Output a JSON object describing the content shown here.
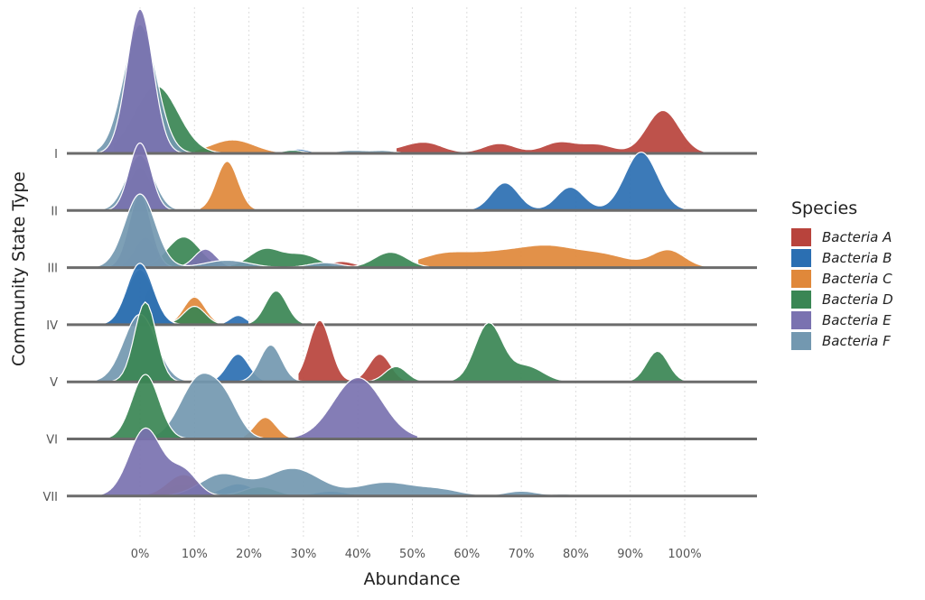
{
  "chart_data": {
    "type": "ridgeline",
    "xlabel": "Abundance",
    "ylabel": "Community State Type",
    "xlim": [
      -14,
      114
    ],
    "x_ticks": [
      "0%",
      "10%",
      "20%",
      "30%",
      "40%",
      "50%",
      "60%",
      "70%",
      "80%",
      "90%",
      "100%"
    ],
    "x_tick_values": [
      0,
      10,
      20,
      30,
      40,
      50,
      60,
      70,
      80,
      90,
      100
    ],
    "grid": "vertical dotted",
    "legend": {
      "title": "Species",
      "position": "right"
    },
    "categories": [
      "I",
      "II",
      "III",
      "IV",
      "V",
      "VI",
      "VII"
    ],
    "species": [
      {
        "name": "Bacteria A",
        "color": "#b8433c"
      },
      {
        "name": "Bacteria B",
        "color": "#2b6fb2"
      },
      {
        "name": "Bacteria C",
        "color": "#e0883a"
      },
      {
        "name": "Bacteria D",
        "color": "#3a8654"
      },
      {
        "name": "Bacteria E",
        "color": "#7a72b0"
      },
      {
        "name": "Bacteria F",
        "color": "#7398b0"
      }
    ],
    "series": [
      {
        "type": "I",
        "species": "Bacteria A",
        "range": [
          47,
          105
        ],
        "peaks": [
          [
            50,
            4,
            0.1
          ],
          [
            53,
            3,
            0.1
          ],
          [
            66,
            3,
            0.16
          ],
          [
            77,
            3,
            0.18
          ],
          [
            84,
            3,
            0.14
          ],
          [
            96,
            3,
            0.7
          ]
        ]
      },
      {
        "type": "I",
        "species": "Bacteria B",
        "range": [
          26,
          33
        ],
        "peaks": [
          [
            29,
            2,
            0.07
          ]
        ]
      },
      {
        "type": "I",
        "species": "Bacteria C",
        "range": [
          10,
          29
        ],
        "peaks": [
          [
            17,
            4,
            0.22
          ]
        ]
      },
      {
        "type": "I",
        "species": "Bacteria D",
        "range": [
          -5,
          33
        ],
        "peaks": [
          [
            3,
            4,
            1.1
          ],
          [
            28,
            2,
            0.05
          ]
        ]
      },
      {
        "type": "I",
        "species": "Bacteria E",
        "range": [
          -8,
          8
        ],
        "peaks": [
          [
            0,
            2.4,
            2.35
          ]
        ]
      },
      {
        "type": "I",
        "species": "Bacteria F",
        "range": [
          -8,
          48
        ],
        "peaks": [
          [
            0,
            3,
            2.1
          ],
          [
            39,
            3,
            0.05
          ],
          [
            45,
            2,
            0.04
          ]
        ]
      },
      {
        "type": "II",
        "species": "Bacteria B",
        "range": [
          61,
          100
        ],
        "peaks": [
          [
            67,
            2.5,
            0.45
          ],
          [
            79,
            2.5,
            0.38
          ],
          [
            92,
            3,
            0.95
          ]
        ]
      },
      {
        "type": "II",
        "species": "Bacteria C",
        "range": [
          11,
          23
        ],
        "peaks": [
          [
            16,
            2,
            0.8
          ]
        ]
      },
      {
        "type": "II",
        "species": "Bacteria D",
        "range": [
          -8,
          8
        ],
        "peaks": [
          [
            0,
            2.2,
            0.7
          ]
        ]
      },
      {
        "type": "II",
        "species": "Bacteria E",
        "range": [
          -8,
          8
        ],
        "peaks": [
          [
            0,
            2,
            1.1
          ]
        ]
      },
      {
        "type": "II",
        "species": "Bacteria F",
        "range": [
          -8,
          9
        ],
        "peaks": [
          [
            0,
            2.5,
            0.9
          ]
        ]
      },
      {
        "type": "III",
        "species": "Bacteria A",
        "range": [
          33,
          44
        ],
        "peaks": [
          [
            37,
            2.5,
            0.1
          ]
        ]
      },
      {
        "type": "III",
        "species": "Bacteria B",
        "range": [
          -8,
          8
        ],
        "peaks": [
          [
            1,
            2,
            0.5
          ]
        ]
      },
      {
        "type": "III",
        "species": "Bacteria C",
        "range": [
          51,
          105
        ],
        "peaks": [
          [
            56,
            5,
            0.22
          ],
          [
            66,
            5,
            0.2
          ],
          [
            75,
            5,
            0.3
          ],
          [
            85,
            5,
            0.2
          ],
          [
            97,
            3,
            0.28
          ]
        ]
      },
      {
        "type": "III",
        "species": "Bacteria D",
        "range": [
          0,
          53
        ],
        "peaks": [
          [
            8,
            3,
            0.5
          ],
          [
            23,
            3,
            0.3
          ],
          [
            30,
            3,
            0.2
          ],
          [
            46,
            3,
            0.25
          ]
        ]
      },
      {
        "type": "III",
        "species": "Bacteria E",
        "range": [
          -8,
          20
        ],
        "peaks": [
          [
            0,
            2,
            1.2
          ],
          [
            12,
            2,
            0.3
          ]
        ]
      },
      {
        "type": "III",
        "species": "Bacteria F",
        "range": [
          -8,
          40
        ],
        "peaks": [
          [
            0,
            2.8,
            1.2
          ],
          [
            16,
            4,
            0.12
          ],
          [
            34,
            3,
            0.08
          ]
        ]
      },
      {
        "type": "IV",
        "species": "Bacteria B",
        "range": [
          -8,
          20
        ],
        "peaks": [
          [
            0,
            2.4,
            1.0
          ],
          [
            18,
            1.5,
            0.15
          ]
        ]
      },
      {
        "type": "IV",
        "species": "Bacteria C",
        "range": [
          5,
          18
        ],
        "peaks": [
          [
            10,
            2,
            0.45
          ]
        ]
      },
      {
        "type": "IV",
        "species": "Bacteria D",
        "range": [
          0,
          30
        ],
        "peaks": [
          [
            2,
            1.5,
            0.6
          ],
          [
            10,
            2,
            0.3
          ],
          [
            25,
            2,
            0.55
          ]
        ]
      },
      {
        "type": "IV",
        "species": "Bacteria F",
        "range": [
          -8,
          8
        ],
        "peaks": [
          [
            0,
            2.5,
            0.9
          ]
        ]
      },
      {
        "type": "V",
        "species": "Bacteria A",
        "range": [
          29,
          50
        ],
        "peaks": [
          [
            33,
            2,
            1.0
          ],
          [
            44,
            2,
            0.45
          ]
        ]
      },
      {
        "type": "V",
        "species": "Bacteria B",
        "range": [
          14,
          24
        ],
        "peaks": [
          [
            18,
            2,
            0.45
          ]
        ]
      },
      {
        "type": "V",
        "species": "Bacteria D",
        "range": [
          -5,
          102
        ],
        "peaks": [
          [
            1,
            2,
            1.3
          ],
          [
            47,
            2,
            0.25
          ],
          [
            64,
            2.5,
            0.95
          ],
          [
            71,
            3,
            0.25
          ],
          [
            95,
            2,
            0.5
          ]
        ]
      },
      {
        "type": "V",
        "species": "Bacteria F",
        "range": [
          -8,
          30
        ],
        "peaks": [
          [
            0,
            3,
            1.1
          ],
          [
            24,
            2,
            0.6
          ]
        ]
      },
      {
        "type": "VI",
        "species": "Bacteria C",
        "range": [
          19,
          28
        ],
        "peaks": [
          [
            23,
            2,
            0.35
          ]
        ]
      },
      {
        "type": "VI",
        "species": "Bacteria D",
        "range": [
          -8,
          9
        ],
        "peaks": [
          [
            1,
            2.5,
            1.05
          ]
        ]
      },
      {
        "type": "VI",
        "species": "Bacteria E",
        "range": [
          28,
          51
        ],
        "peaks": [
          [
            40,
            4.5,
            1.0
          ]
        ]
      },
      {
        "type": "VI",
        "species": "Bacteria F",
        "range": [
          -2,
          28
        ],
        "peaks": [
          [
            11,
            3.5,
            1.0
          ],
          [
            16,
            2.5,
            0.4
          ]
        ]
      },
      {
        "type": "VII",
        "species": "Bacteria B",
        "range": [
          10,
          44
        ],
        "peaks": [
          [
            18,
            3,
            0.2
          ],
          [
            35,
            3,
            0.08
          ]
        ]
      },
      {
        "type": "VII",
        "species": "Bacteria C",
        "range": [
          0,
          20
        ],
        "peaks": [
          [
            8,
            3,
            0.35
          ]
        ]
      },
      {
        "type": "VII",
        "species": "Bacteria D",
        "range": [
          0,
          35
        ],
        "peaks": [
          [
            8,
            3,
            0.2
          ],
          [
            22,
            3,
            0.15
          ]
        ]
      },
      {
        "type": "VII",
        "species": "Bacteria E",
        "range": [
          -8,
          15
        ],
        "peaks": [
          [
            1,
            3,
            1.1
          ],
          [
            8,
            2.5,
            0.4
          ]
        ]
      },
      {
        "type": "VII",
        "species": "Bacteria F",
        "range": [
          0,
          80
        ],
        "peaks": [
          [
            15,
            4,
            0.35
          ],
          [
            28,
            5,
            0.45
          ],
          [
            45,
            5,
            0.22
          ],
          [
            55,
            4,
            0.1
          ],
          [
            70,
            3,
            0.08
          ],
          [
            78,
            2,
            0.03
          ]
        ]
      }
    ]
  }
}
